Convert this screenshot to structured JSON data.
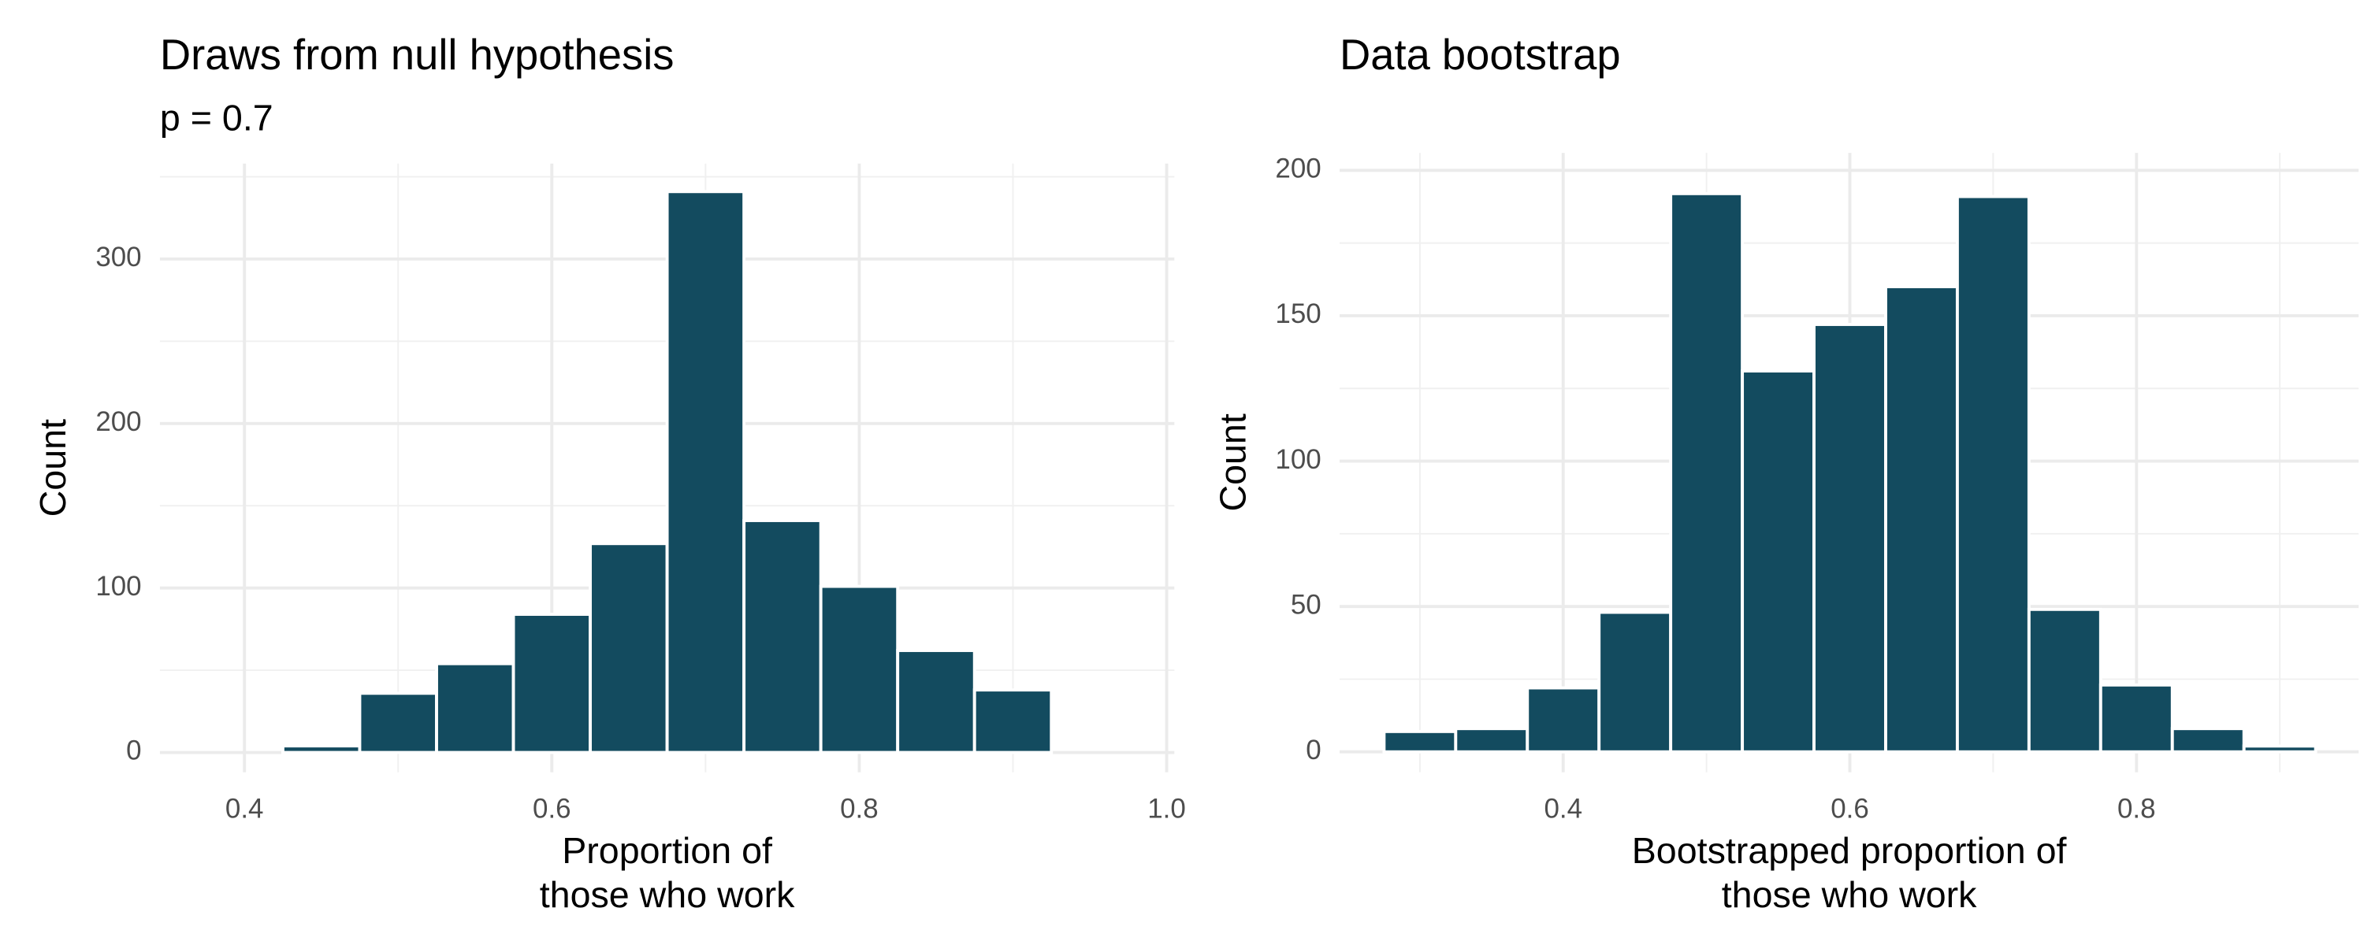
{
  "chart_data": [
    {
      "type": "histogram",
      "title": "Draws from null hypothesis",
      "subtitle": "p = 0.7",
      "xlabel": [
        "Proportion of",
        "those who work"
      ],
      "ylabel": "Count",
      "bins": [
        0.375,
        0.425,
        0.475,
        0.525,
        0.575,
        0.625,
        0.675,
        0.725,
        0.775,
        0.825,
        0.875,
        0.925,
        0.975
      ],
      "values": [
        0,
        4,
        36,
        54,
        84,
        127,
        341,
        141,
        101,
        62,
        38,
        0
      ],
      "color": "#134b5f",
      "xlim": [
        0.345,
        1.005
      ],
      "xticks": [
        0.4,
        0.6,
        0.8,
        {
          "value": 1,
          "label": "1.0"
        }
      ],
      "ylim": [
        -12,
        358
      ],
      "yticks": [
        0,
        100,
        200,
        300
      ],
      "grid": true
    },
    {
      "type": "histogram",
      "title": "Data bootstrap",
      "xlabel": [
        "Bootstrapped proportion of",
        "those who work"
      ],
      "ylabel": "Count",
      "bins": [
        0.275,
        0.325,
        0.375,
        0.425,
        0.475,
        0.525,
        0.575,
        0.625,
        0.675,
        0.725,
        0.775,
        0.825,
        0.875,
        0.925
      ],
      "values": [
        7,
        8,
        22,
        48,
        192,
        131,
        147,
        160,
        191,
        49,
        23,
        8,
        2
      ],
      "color": "#134b5f",
      "xlim": [
        0.244,
        0.955
      ],
      "xticks": [
        0.4,
        0.6,
        0.8
      ],
      "ylim": [
        -7,
        206
      ],
      "yticks": [
        0,
        50,
        100,
        150,
        200
      ],
      "grid": true
    }
  ]
}
